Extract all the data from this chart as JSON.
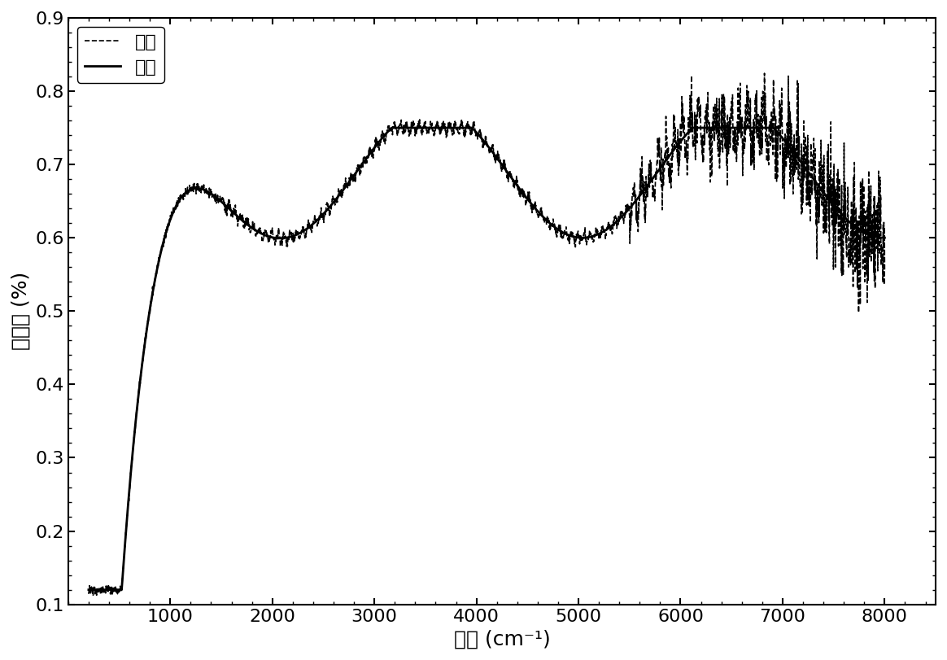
{
  "xlabel": "波数 (cm⁻¹)",
  "ylabel": "透射率 (%)",
  "legend_measured": "测量",
  "legend_calculated": "计算",
  "xlim": [
    0,
    8500
  ],
  "ylim": [
    0.1,
    0.9
  ],
  "xticks": [
    1000,
    2000,
    3000,
    4000,
    5000,
    6000,
    7000,
    8000
  ],
  "yticks": [
    0.1,
    0.2,
    0.3,
    0.4,
    0.5,
    0.6,
    0.7,
    0.8,
    0.9
  ],
  "background_color": "#ffffff",
  "line_color": "#000000",
  "title_fontsize": 18,
  "label_fontsize": 18,
  "tick_fontsize": 16
}
